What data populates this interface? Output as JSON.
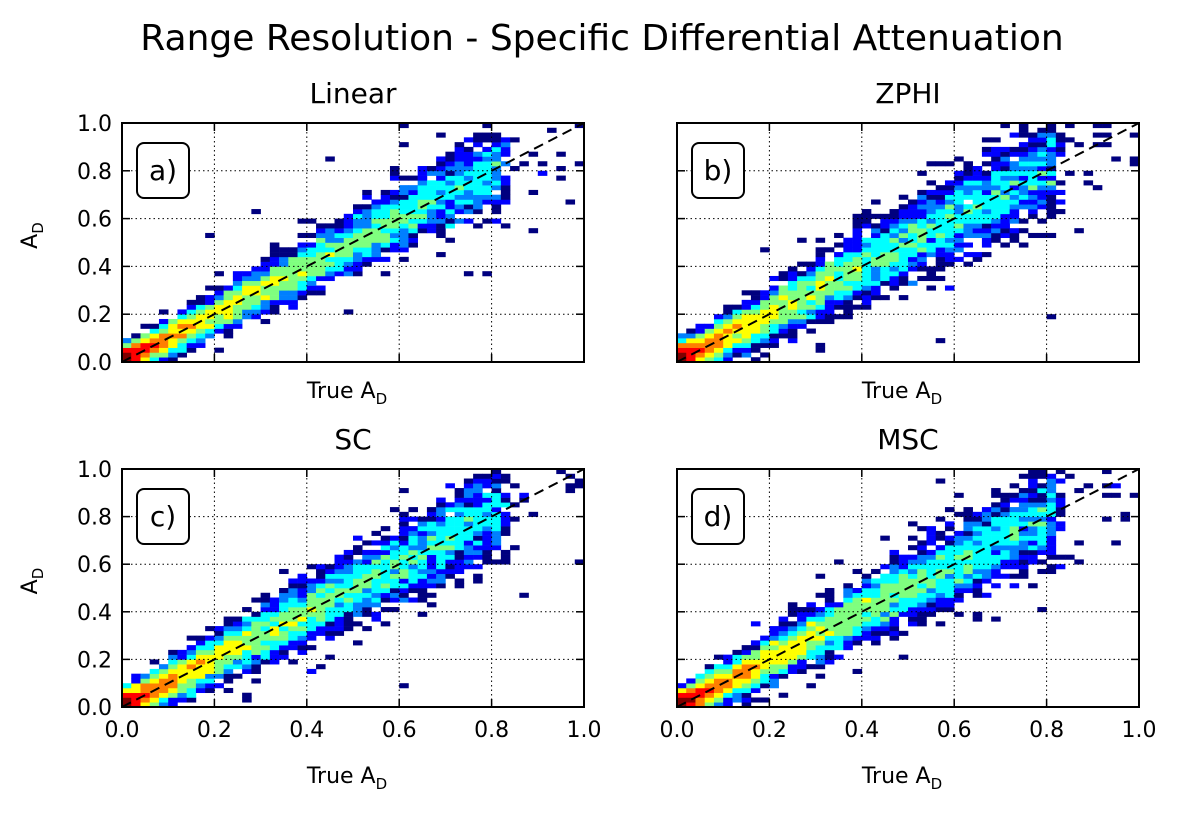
{
  "figure": {
    "title": "Range Resolution - Specific Differential Attenuation"
  },
  "palette": [
    "#00007f",
    "#0000ff",
    "#007fff",
    "#00ffff",
    "#7fff7f",
    "#ffff00",
    "#ff7f00",
    "#ff0000",
    "#7f0000"
  ],
  "chart_data": [
    {
      "type": "heatmap",
      "title": "Linear",
      "panel_label": "a)",
      "xlabel": "True A",
      "xlabel_sub": "D",
      "ylabel": "A",
      "ylabel_sub": "D",
      "xlim": [
        0,
        1
      ],
      "ylim": [
        0,
        1
      ],
      "xticks": [
        "0.0",
        "0.2",
        "0.4",
        "0.6",
        "0.8",
        "1.0"
      ],
      "yticks": [
        "0.0",
        "0.2",
        "0.4",
        "0.6",
        "0.8",
        "1.0"
      ],
      "show_xticklabels": false,
      "show_yticklabels": true,
      "grid": true,
      "reference_line": "1:1 dashed",
      "bins": 50,
      "spread": 0.055,
      "outliers": 110,
      "seed": 11
    },
    {
      "type": "heatmap",
      "title": "ZPHI",
      "panel_label": "b)",
      "xlabel": "True A",
      "xlabel_sub": "D",
      "ylabel": "",
      "ylabel_sub": "",
      "xlim": [
        0,
        1
      ],
      "ylim": [
        0,
        1
      ],
      "xticks": [
        "0.0",
        "0.2",
        "0.4",
        "0.6",
        "0.8",
        "1.0"
      ],
      "yticks": [
        "0.0",
        "0.2",
        "0.4",
        "0.6",
        "0.8",
        "1.0"
      ],
      "show_xticklabels": false,
      "show_yticklabels": false,
      "grid": true,
      "reference_line": "1:1 dashed",
      "bins": 50,
      "spread": 0.07,
      "outliers": 150,
      "seed": 23
    },
    {
      "type": "heatmap",
      "title": "SC",
      "panel_label": "c)",
      "xlabel": "True A",
      "xlabel_sub": "D",
      "ylabel": "A",
      "ylabel_sub": "D",
      "xlim": [
        0,
        1
      ],
      "ylim": [
        0,
        1
      ],
      "xticks": [
        "0.0",
        "0.2",
        "0.4",
        "0.6",
        "0.8",
        "1.0"
      ],
      "yticks": [
        "0.0",
        "0.2",
        "0.4",
        "0.6",
        "0.8",
        "1.0"
      ],
      "show_xticklabels": true,
      "show_yticklabels": true,
      "grid": true,
      "reference_line": "1:1 dashed",
      "bins": 50,
      "spread": 0.065,
      "outliers": 140,
      "seed": 37
    },
    {
      "type": "heatmap",
      "title": "MSC",
      "panel_label": "d)",
      "xlabel": "True A",
      "xlabel_sub": "D",
      "ylabel": "",
      "ylabel_sub": "",
      "xlim": [
        0,
        1
      ],
      "ylim": [
        0,
        1
      ],
      "xticks": [
        "0.0",
        "0.2",
        "0.4",
        "0.6",
        "0.8",
        "1.0"
      ],
      "yticks": [
        "0.0",
        "0.2",
        "0.4",
        "0.6",
        "0.8",
        "1.0"
      ],
      "show_xticklabels": true,
      "show_yticklabels": false,
      "grid": true,
      "reference_line": "1:1 dashed",
      "bins": 50,
      "spread": 0.065,
      "outliers": 140,
      "seed": 53
    }
  ]
}
